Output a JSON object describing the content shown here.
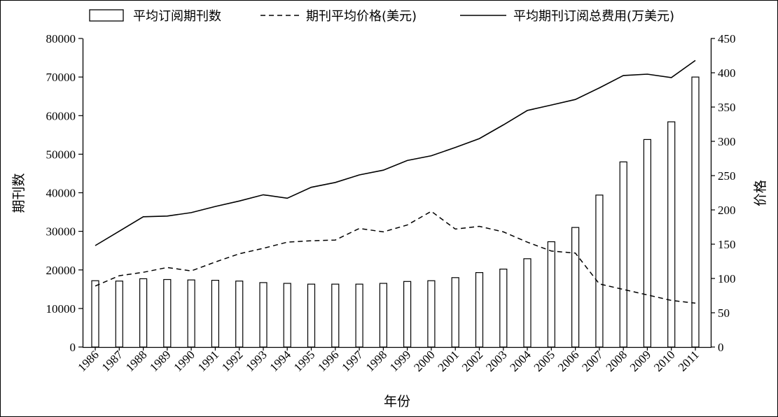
{
  "chart_data": {
    "type": "bar",
    "categories": [
      "1986",
      "1987",
      "1988",
      "1989",
      "1990",
      "1991",
      "1992",
      "1993",
      "1994",
      "1995",
      "1996",
      "1997",
      "1998",
      "1999",
      "2000",
      "2001",
      "2002",
      "2003",
      "2004",
      "2005",
      "2006",
      "2007",
      "2008",
      "2009",
      "2010",
      "2011"
    ],
    "series": [
      {
        "name": "平均订阅期刊数",
        "type": "bar",
        "axis": "left",
        "values": [
          17200,
          17100,
          17700,
          17500,
          17400,
          17300,
          17100,
          16700,
          16500,
          16300,
          16300,
          16300,
          16500,
          17000,
          17200,
          18000,
          19300,
          20200,
          22900,
          27300,
          31000,
          39400,
          48000,
          53800,
          58400,
          70000
        ]
      },
      {
        "name": "期刊平均价格(美元)",
        "type": "line",
        "style": "dashed",
        "axis": "right",
        "values": [
          89,
          104,
          109,
          116,
          111,
          124,
          136,
          144,
          153,
          155,
          156,
          173,
          168,
          178,
          198,
          172,
          176,
          168,
          153,
          140,
          137,
          92,
          84,
          76,
          68,
          64
        ]
      },
      {
        "name": "平均期刊订阅总费用(万美元)",
        "type": "line",
        "style": "solid",
        "axis": "right",
        "values": [
          148,
          169,
          190,
          191,
          196,
          205,
          213,
          222,
          217,
          233,
          240,
          251,
          258,
          272,
          279,
          291,
          304,
          324,
          345,
          353,
          361,
          378,
          396,
          398,
          393,
          418
        ]
      }
    ],
    "xlabel": "年份",
    "ylabel": "期刊数",
    "y2label": "价格",
    "ylim": [
      0,
      80000
    ],
    "y2lim": [
      0,
      450
    ],
    "yticks": [
      "0",
      "10000",
      "20000",
      "30000",
      "40000",
      "50000",
      "60000",
      "70000",
      "80000"
    ],
    "y2ticks": [
      "0",
      "50",
      "100",
      "150",
      "200",
      "250",
      "300",
      "350",
      "400",
      "450"
    ],
    "legend_position": "top",
    "grid": false
  }
}
